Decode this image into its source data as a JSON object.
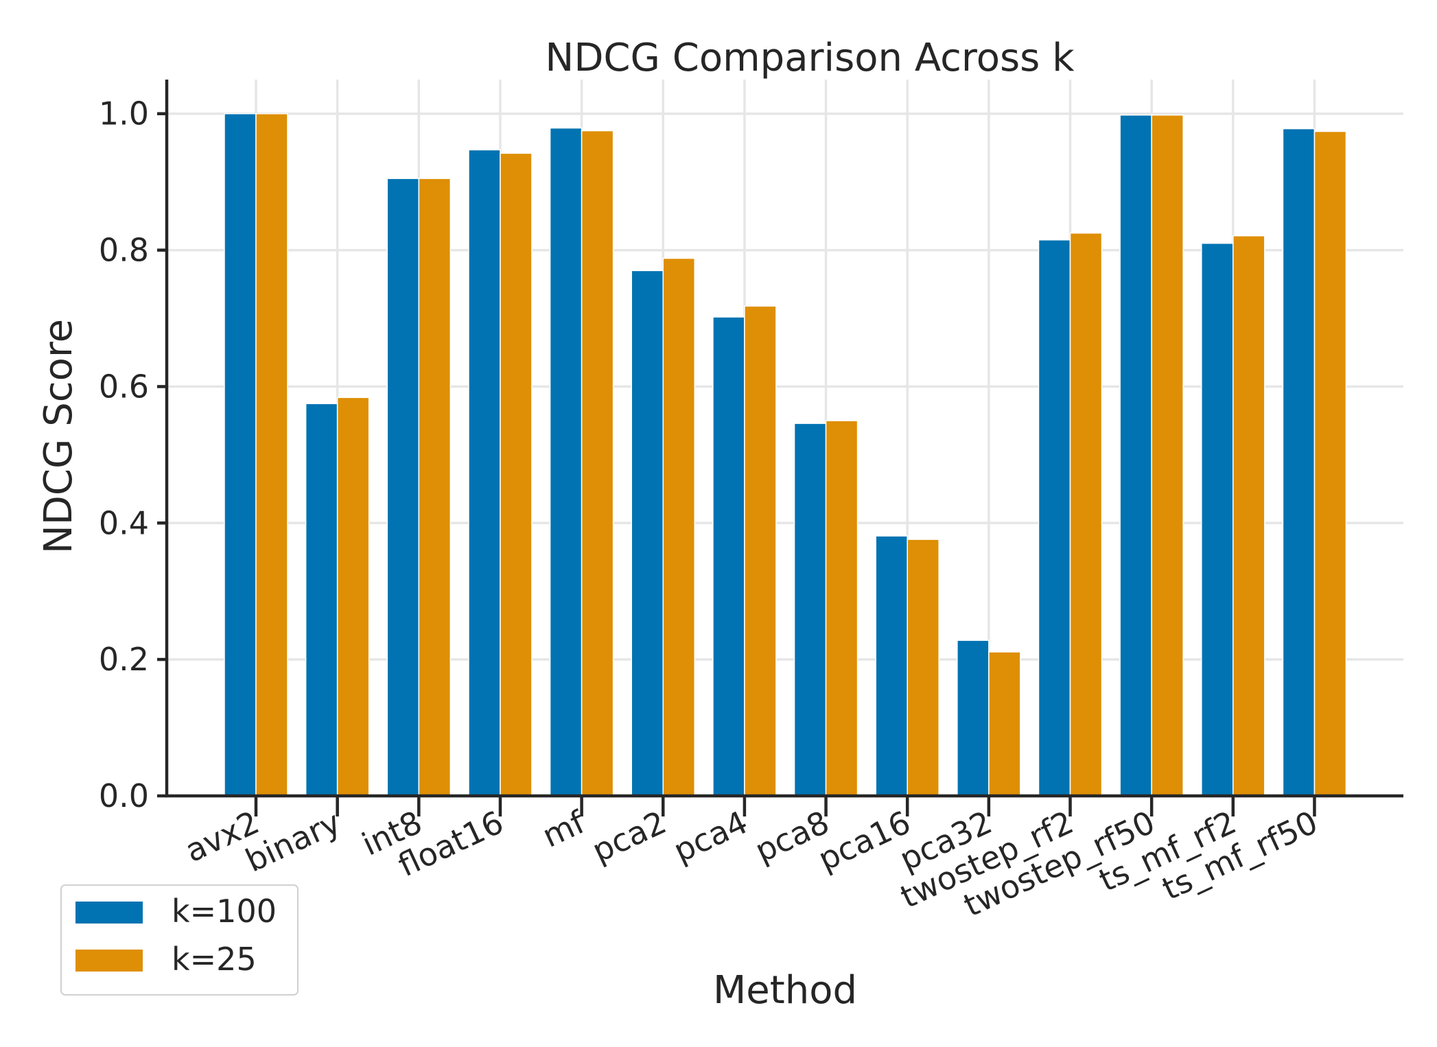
{
  "chart_data": {
    "type": "bar",
    "title": "NDCG Comparison Across k",
    "xlabel": "Method",
    "ylabel": "NDCG Score",
    "ylim": [
      0,
      1.05
    ],
    "yticks": [
      "0.0",
      "0.2",
      "0.4",
      "0.6",
      "0.8",
      "1.0"
    ],
    "grid": true,
    "legend_position": "bottom-left",
    "categories": [
      "avx2",
      "binary",
      "int8",
      "float16",
      "mf",
      "pca2",
      "pca4",
      "pca8",
      "pca16",
      "pca32",
      "twostep_rf2",
      "twostep_rf50",
      "ts_mf_rf2",
      "ts_mf_rf50"
    ],
    "series": [
      {
        "name": "k=100",
        "color": "#0173b2",
        "values": [
          1.0,
          0.575,
          0.905,
          0.947,
          0.979,
          0.77,
          0.702,
          0.546,
          0.381,
          0.228,
          0.815,
          0.998,
          0.81,
          0.978
        ]
      },
      {
        "name": "k=25",
        "color": "#de8f05",
        "values": [
          1.0,
          0.584,
          0.905,
          0.942,
          0.975,
          0.788,
          0.718,
          0.55,
          0.376,
          0.211,
          0.825,
          0.998,
          0.821,
          0.974
        ]
      }
    ]
  }
}
